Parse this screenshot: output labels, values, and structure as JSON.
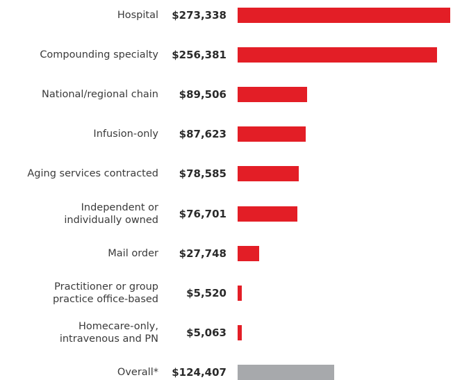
{
  "chart_data": {
    "type": "bar",
    "orientation": "horizontal",
    "categories": [
      "Hospital",
      "Compounding specialty",
      "National/regional chain",
      "Infusion-only",
      "Aging services contracted",
      "Independent or\nindividually owned",
      "Mail order",
      "Practitioner or group\npractice office-based",
      "Homecare-only,\nintravenous and PN",
      "Overall*"
    ],
    "values": [
      273338,
      256381,
      89506,
      87623,
      78585,
      76701,
      27748,
      5520,
      5063,
      124407
    ],
    "value_labels": [
      "$273,338",
      "$256,381",
      "$89,506",
      "$87,623",
      "$78,585",
      "$76,701",
      "$27,748",
      "$5,520",
      "$5,063",
      "$124,407"
    ],
    "colors": [
      "#e31e26",
      "#e31e26",
      "#e31e26",
      "#e31e26",
      "#e31e26",
      "#e31e26",
      "#e31e26",
      "#e31e26",
      "#e31e26",
      "#a7a9ac"
    ]
  }
}
